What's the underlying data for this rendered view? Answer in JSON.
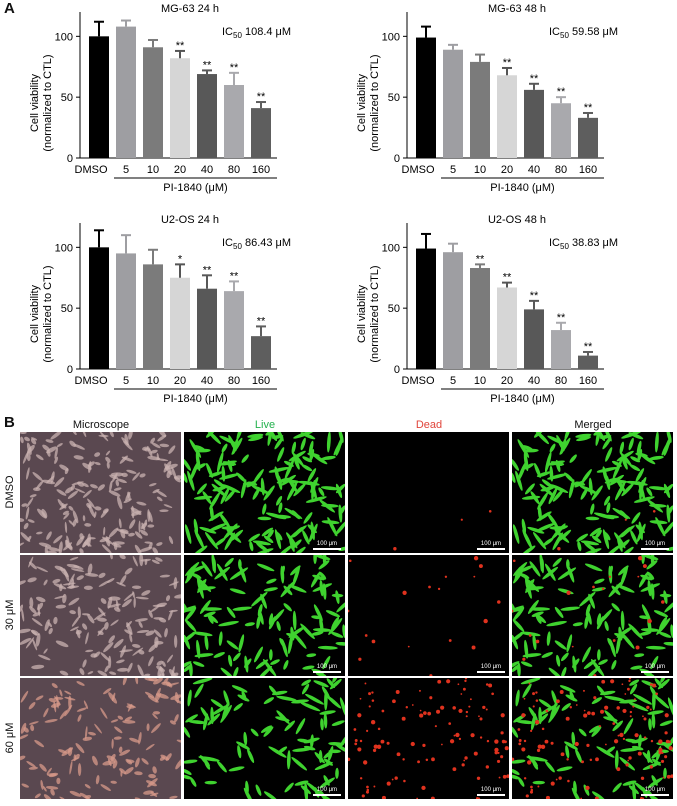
{
  "panel_a_label": "A",
  "panel_b_label": "B",
  "chart_data": [
    {
      "type": "bar",
      "title": "MG-63 24 h",
      "ic50": {
        "prefix": "IC",
        "sub": "50",
        "value": "108.4",
        "unit": "μM"
      },
      "categories": [
        "DMSO",
        "5",
        "10",
        "20",
        "40",
        "80",
        "160"
      ],
      "values": [
        100,
        108,
        91,
        82,
        69,
        60,
        41
      ],
      "errors": [
        12,
        5,
        6,
        6,
        3,
        10,
        5
      ],
      "significance": [
        "",
        "",
        "",
        "**",
        "**",
        "**",
        "**"
      ],
      "ylabel_line1": "Cell viability",
      "ylabel_line2": "(normalized to CTL)",
      "xlabel": "PI-1840 (μM)",
      "yticks": [
        0,
        50,
        100
      ],
      "ylim": [
        0,
        120
      ]
    },
    {
      "type": "bar",
      "title": "MG-63 48 h",
      "ic50": {
        "prefix": "IC",
        "sub": "50",
        "value": "59.58",
        "unit": "μM"
      },
      "categories": [
        "DMSO",
        "5",
        "10",
        "20",
        "40",
        "80",
        "160"
      ],
      "values": [
        99,
        89,
        79,
        68,
        56,
        45,
        33
      ],
      "errors": [
        9,
        4,
        6,
        6,
        5,
        5,
        4
      ],
      "significance": [
        "",
        "",
        "",
        "**",
        "**",
        "**",
        "**"
      ],
      "ylabel_line1": "Cell viability",
      "ylabel_line2": "(normalized to CTL)",
      "xlabel": "PI-1840 (μM)",
      "yticks": [
        0,
        50,
        100
      ],
      "ylim": [
        0,
        120
      ]
    },
    {
      "type": "bar",
      "title": "U2-OS 24 h",
      "ic50": {
        "prefix": "IC",
        "sub": "50",
        "value": "86.43",
        "unit": "μM"
      },
      "categories": [
        "DMSO",
        "5",
        "10",
        "20",
        "40",
        "80",
        "160"
      ],
      "values": [
        100,
        95,
        86,
        75,
        66,
        64,
        27
      ],
      "errors": [
        14,
        15,
        12,
        11,
        11,
        8,
        8
      ],
      "significance": [
        "",
        "",
        "",
        "*",
        "**",
        "**",
        "**"
      ],
      "ylabel_line1": "Cell viability",
      "ylabel_line2": "(normalized to CTL)",
      "xlabel": "PI-1840 (μM)",
      "yticks": [
        0,
        50,
        100
      ],
      "ylim": [
        0,
        120
      ]
    },
    {
      "type": "bar",
      "title": "U2-OS 48 h",
      "ic50": {
        "prefix": "IC",
        "sub": "50",
        "value": "38.83",
        "unit": "μM"
      },
      "categories": [
        "DMSO",
        "5",
        "10",
        "20",
        "40",
        "80",
        "160"
      ],
      "values": [
        99,
        96,
        83,
        67,
        49,
        32,
        11
      ],
      "errors": [
        12,
        7,
        3,
        4,
        7,
        6,
        3
      ],
      "significance": [
        "",
        "",
        "**",
        "**",
        "**",
        "**",
        "**"
      ],
      "ylabel_line1": "Cell viability",
      "ylabel_line2": "(normalized to CTL)",
      "xlabel": "PI-1840 (μM)",
      "yticks": [
        0,
        50,
        100
      ],
      "ylim": [
        0,
        120
      ]
    }
  ],
  "bar_colors": [
    "#000000",
    "#9e9ea2",
    "#7b7b7b",
    "#d6d6d6",
    "#585858",
    "#a9a9ad",
    "#5e5e5e"
  ],
  "micrographs": {
    "columns": [
      {
        "label": "Microscope",
        "color": "#111111"
      },
      {
        "label": "Live",
        "color": "#22b14c"
      },
      {
        "label": "Dead",
        "color": "#e0443a"
      },
      {
        "label": "Merged",
        "color": "#111111"
      }
    ],
    "rows": [
      "DMSO",
      "30 μM",
      "60 μM"
    ],
    "scale_bar": "100 μm",
    "cell_colors": {
      "phase": "#5a4850",
      "live": "#3fd22f",
      "dead": "#e0321e",
      "background": "#000000"
    }
  }
}
